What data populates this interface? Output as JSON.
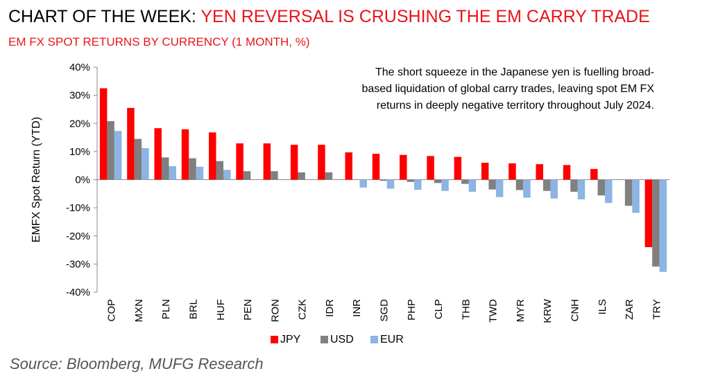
{
  "header": {
    "title_prefix": "CHART OF THE WEEK: ",
    "title_highlight": "YEN REVERSAL IS CRUSHING THE EM CARRY TRADE",
    "subtitle": "EM FX SPOT RETURNS BY CURRENCY (1 MONTH, %)"
  },
  "source": "Source: Bloomberg, MUFG Research",
  "chart_data": {
    "type": "bar",
    "title": "EM FX SPOT RETURNS BY CURRENCY (1 MONTH, %)",
    "xlabel": "",
    "ylabel": "EMFX Spot Return (YTD)",
    "ylim": [
      -40,
      40
    ],
    "yticks": [
      40,
      30,
      20,
      10,
      0,
      -10,
      -20,
      -30,
      -40
    ],
    "ytick_labels": [
      "40%",
      "30%",
      "20%",
      "10%",
      "0%",
      "-10%",
      "-20%",
      "-30%",
      "-40%"
    ],
    "grid": false,
    "legend_position": "bottom",
    "categories": [
      "COP",
      "MXN",
      "PLN",
      "BRL",
      "HUF",
      "PEN",
      "RON",
      "CZK",
      "IDR",
      "INR",
      "SGD",
      "PHP",
      "CLP",
      "THB",
      "TWD",
      "MYR",
      "KRW",
      "CNH",
      "ILS",
      "ZAR",
      "TRY"
    ],
    "series": [
      {
        "name": "JPY",
        "color": "#ff0000",
        "values": [
          32.5,
          25.5,
          18.3,
          17.9,
          16.8,
          12.9,
          12.9,
          12.4,
          12.4,
          9.7,
          9.2,
          8.8,
          8.4,
          8.1,
          6.0,
          5.8,
          5.5,
          5.2,
          3.8,
          0.0,
          -24.0
        ]
      },
      {
        "name": "USD",
        "color": "#808080",
        "values": [
          20.8,
          14.5,
          7.9,
          7.6,
          6.6,
          3.0,
          3.0,
          2.6,
          2.6,
          0.0,
          -0.4,
          -0.8,
          -1.2,
          -1.5,
          -3.5,
          -3.7,
          -4.0,
          -4.3,
          -5.6,
          -9.3,
          -30.9
        ]
      },
      {
        "name": "EUR",
        "color": "#8db4e2",
        "values": [
          17.3,
          11.2,
          4.8,
          4.6,
          3.5,
          0.0,
          0.0,
          0.0,
          0.0,
          -2.8,
          -3.2,
          -3.6,
          -4.0,
          -4.3,
          -6.2,
          -6.4,
          -6.7,
          -7.0,
          -8.3,
          -11.8,
          -32.8
        ]
      }
    ],
    "annotation": [
      "The short squeeze in the Japanese yen is fuelling broad-",
      "based liquidation of global carry trades, leaving spot EM FX",
      "returns in deeply negative territory throughout July 2024."
    ]
  }
}
